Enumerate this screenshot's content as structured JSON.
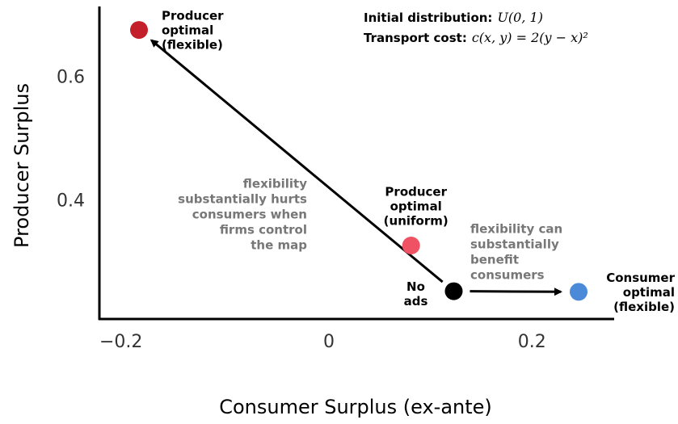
{
  "chart_data": {
    "type": "scatter",
    "xlabel": "Consumer Surplus (ex-ante)",
    "ylabel": "Producer Surplus",
    "xlim": [
      -0.226,
      0.281
    ],
    "ylim": [
      0.21,
      0.716
    ],
    "xticks": [
      {
        "value": -0.2,
        "label": "−0.2"
      },
      0,
      0.2
    ],
    "yticks": [
      0.4,
      0.6
    ],
    "points": [
      {
        "label": [
          "Producer",
          "optimal",
          "(flexible)"
        ],
        "x": -0.187,
        "y": 0.678,
        "color": "#c4202b"
      },
      {
        "label": [
          "Producer",
          "optimal",
          "(uniform)"
        ],
        "x": 0.081,
        "y": 0.329,
        "color": "#ef5262"
      },
      {
        "label": [
          "No",
          "ads"
        ],
        "x": 0.123,
        "y": 0.255,
        "color": "#000000"
      },
      {
        "label": [
          "Consumer",
          "optimal",
          "(flexible)"
        ],
        "x": 0.246,
        "y": 0.254,
        "color": "#4a8ad8"
      }
    ],
    "annotations": [
      {
        "lines": [
          "flexibility",
          "substantially hurts",
          "consumers when",
          "firms control",
          "the map"
        ]
      },
      {
        "lines": [
          "flexibility can",
          "substantially",
          "benefit",
          "consumers"
        ]
      }
    ],
    "info": [
      {
        "label": "Initial distribution:",
        "formula": "U(0, 1)"
      },
      {
        "label": "Transport cost:",
        "formula": "c(x, y)  =  2(y − x)²"
      }
    ]
  }
}
